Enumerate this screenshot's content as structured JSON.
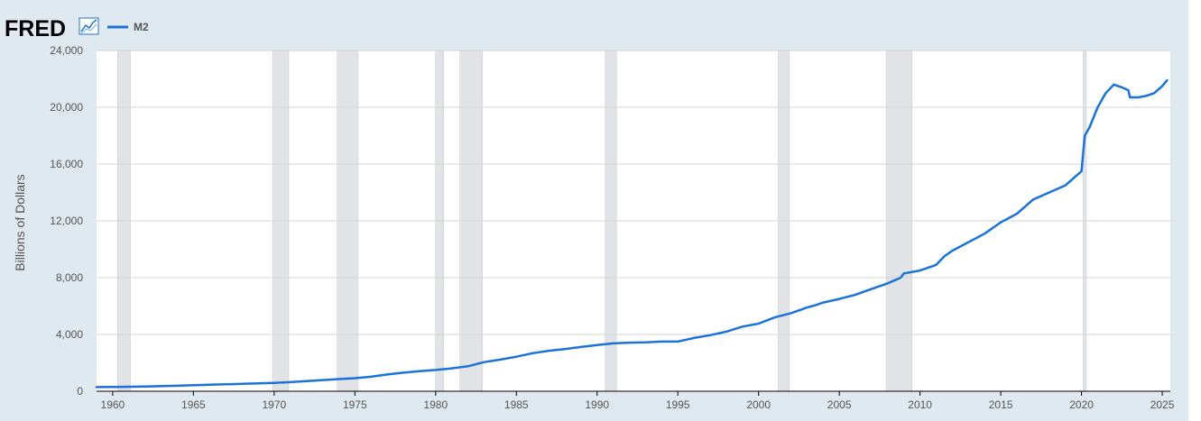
{
  "header": {
    "logo_text": "FRED",
    "logo_icon": "line-chart-icon",
    "legend_label": "M2"
  },
  "colors": {
    "series": "#1a73d9",
    "recession": "#e1e3e6",
    "background": "#e1e9f0",
    "plot": "#ffffff",
    "grid": "#d5d5d5"
  },
  "chart_data": {
    "type": "line",
    "ylabel": "Billions of Dollars",
    "xlim": [
      1959,
      2025.5
    ],
    "ylim": [
      0,
      24000
    ],
    "yticks": [
      {
        "value": 0,
        "label": "0"
      },
      {
        "value": 4000,
        "label": "4,000"
      },
      {
        "value": 8000,
        "label": "8,000"
      },
      {
        "value": 12000,
        "label": "12,000"
      },
      {
        "value": 16000,
        "label": "16,000"
      },
      {
        "value": 20000,
        "label": "20,000"
      },
      {
        "value": 24000,
        "label": "24,000"
      }
    ],
    "xticks": [
      {
        "value": 1960,
        "label": "1960"
      },
      {
        "value": 1965,
        "label": "1965"
      },
      {
        "value": 1970,
        "label": "1970"
      },
      {
        "value": 1975,
        "label": "1975"
      },
      {
        "value": 1980,
        "label": "1980"
      },
      {
        "value": 1985,
        "label": "1985"
      },
      {
        "value": 1990,
        "label": "1990"
      },
      {
        "value": 1995,
        "label": "1995"
      },
      {
        "value": 2000,
        "label": "2000"
      },
      {
        "value": 2005,
        "label": "2005"
      },
      {
        "value": 2010,
        "label": "2010"
      },
      {
        "value": 2015,
        "label": "2015"
      },
      {
        "value": 2020,
        "label": "2020"
      },
      {
        "value": 2025,
        "label": "2025"
      }
    ],
    "grid": true,
    "recessions": [
      [
        1960.3,
        1961.1
      ],
      [
        1969.9,
        1970.9
      ],
      [
        1973.9,
        1975.2
      ],
      [
        1980.0,
        1980.5
      ],
      [
        1981.5,
        1982.9
      ],
      [
        1990.5,
        1991.2
      ],
      [
        2001.2,
        2001.9
      ],
      [
        2007.9,
        2009.5
      ],
      [
        2020.1,
        2020.3
      ]
    ],
    "series": [
      {
        "name": "M2",
        "x": [
          1959,
          1960,
          1962,
          1964,
          1966,
          1968,
          1970,
          1971,
          1972,
          1974,
          1975,
          1976,
          1977,
          1978,
          1979,
          1980,
          1981,
          1982,
          1983,
          1984,
          1985,
          1986,
          1987,
          1988,
          1989,
          1990,
          1991,
          1992,
          1993,
          1994,
          1995,
          1996,
          1997,
          1998,
          1999,
          2000,
          2001,
          2002,
          2003,
          2003.5,
          2004,
          2005,
          2006,
          2007,
          2008,
          2008.8,
          2009,
          2010,
          2011,
          2011.5,
          2012,
          2013,
          2014,
          2015,
          2016,
          2017,
          2018,
          2019,
          2020.0,
          2020.2,
          2020.5,
          2021.0,
          2021.5,
          2022.0,
          2022.5,
          2022.9,
          2023.0,
          2023.5,
          2024.0,
          2024.5,
          2025.0,
          2025.3
        ],
        "values": [
          290,
          300,
          330,
          390,
          460,
          520,
          590,
          640,
          720,
          860,
          920,
          1020,
          1180,
          1310,
          1410,
          1500,
          1610,
          1760,
          2050,
          2230,
          2430,
          2680,
          2850,
          2970,
          3120,
          3250,
          3370,
          3420,
          3450,
          3500,
          3500,
          3750,
          3950,
          4200,
          4550,
          4760,
          5200,
          5500,
          5900,
          6050,
          6250,
          6500,
          6800,
          7200,
          7600,
          8000,
          8300,
          8500,
          8900,
          9500,
          9900,
          10500,
          11100,
          11900,
          12500,
          13500,
          14000,
          14500,
          15500,
          18000,
          18600,
          20000,
          21000,
          21600,
          21400,
          21200,
          20700,
          20700,
          20800,
          21000,
          21500,
          21900
        ]
      }
    ]
  }
}
